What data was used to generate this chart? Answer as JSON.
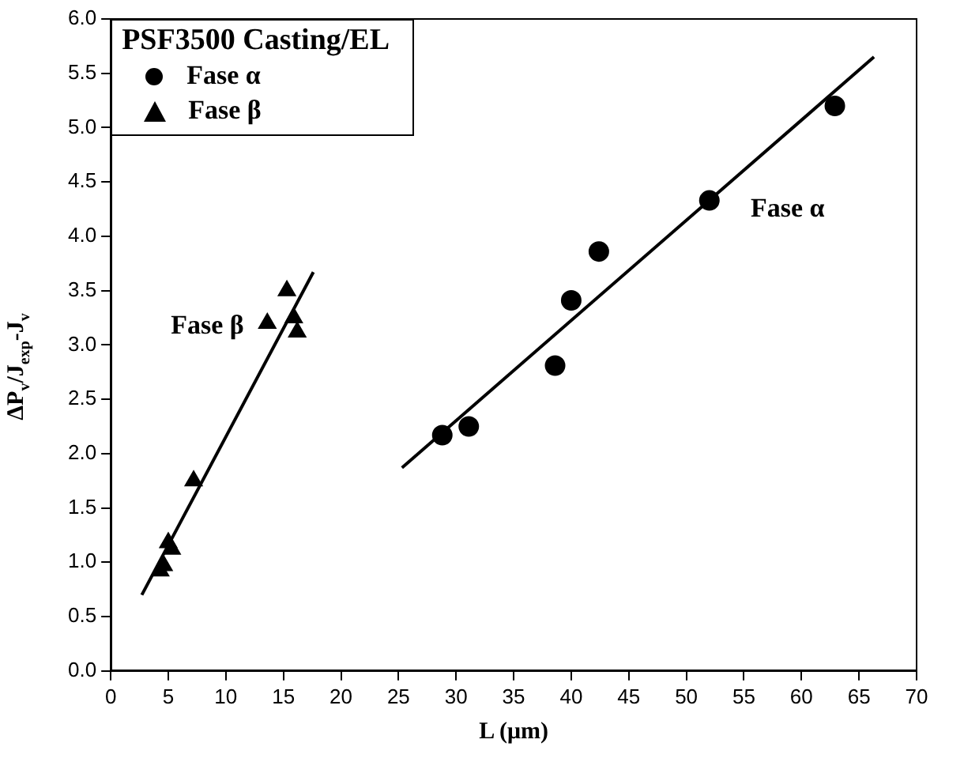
{
  "chart_data": {
    "type": "scatter",
    "xlabel": "L (μm)",
    "ylabel": "ΔP$_{v}$/J$_{exp}$-J$_{v}$",
    "legend_title": "PSF3500 Casting/EL",
    "legend": "top left",
    "grid": false,
    "xlim": [
      0,
      70
    ],
    "xticks": [
      0,
      5,
      10,
      15,
      20,
      25,
      30,
      35,
      40,
      45,
      50,
      55,
      60,
      65,
      70
    ],
    "ylim": [
      0,
      6
    ],
    "yticks": [
      {
        "value": 0,
        "label": "0.0"
      },
      {
        "value": 0.5,
        "label": "0.5"
      },
      {
        "value": 1,
        "label": "1.0"
      },
      {
        "value": 1.5,
        "label": "1.5"
      },
      {
        "value": 2,
        "label": "2.0"
      },
      {
        "value": 2.5,
        "label": "2.5"
      },
      {
        "value": 3,
        "label": "3.0"
      },
      {
        "value": 3.5,
        "label": "3.5"
      },
      {
        "value": 4,
        "label": "4.0"
      },
      {
        "value": 4.5,
        "label": "4.5"
      },
      {
        "value": 5,
        "label": "5.0"
      },
      {
        "value": 5.5,
        "label": "5.5"
      },
      {
        "value": 6,
        "label": "6.0"
      }
    ],
    "series": [
      {
        "name": "Fase α",
        "color": "#000000",
        "marker": "circle",
        "x": [
          28.8,
          31.1,
          38.6,
          40.0,
          42.4,
          52.0,
          62.9
        ],
        "values": [
          2.17,
          2.25,
          2.81,
          3.41,
          3.86,
          4.33,
          5.2
        ]
      },
      {
        "name": "Fase β",
        "color": "#000000",
        "marker": "triangle",
        "x": [
          4.3,
          4.6,
          5.0,
          5.3,
          7.2,
          13.6,
          15.3,
          15.9,
          16.2
        ],
        "values": [
          0.92,
          0.97,
          1.18,
          1.12,
          1.75,
          3.2,
          3.5,
          3.25,
          3.12
        ]
      },
      {
        "type": "line",
        "color": "#000000",
        "marker": "none",
        "x": [
          25.3,
          66.3
        ],
        "values": [
          1.87,
          5.65
        ]
      },
      {
        "type": "line",
        "color": "#000000",
        "marker": "none",
        "x": [
          2.7,
          17.6
        ],
        "values": [
          0.7,
          3.67
        ]
      }
    ],
    "annotations": [
      "Fase α",
      "Fase β"
    ]
  }
}
